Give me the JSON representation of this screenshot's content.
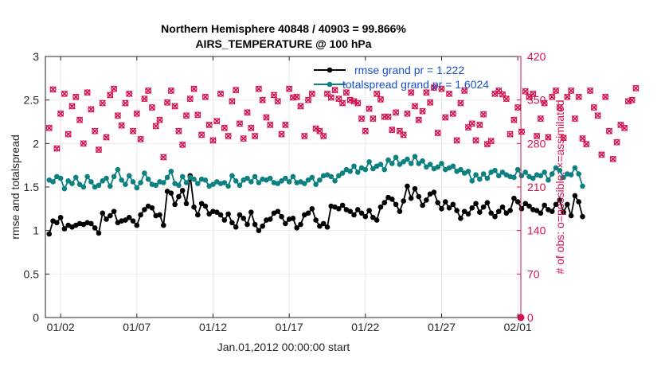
{
  "chart_data": {
    "type": "line",
    "title_line1": "Northern Hemisphere 40848 / 40903 = 99.866%",
    "title_line2": "AIRS_TEMPERATURE @ 100 hPa",
    "xlabel": "Jan.01,2012 00:00:00 start",
    "ylabel_left": "rmse and totalspread",
    "ylabel_right": "# of obs: o=possible; ×=assimilated",
    "xlim": [
      0,
      31.2
    ],
    "ylim_left": [
      0,
      3
    ],
    "ylim_right": [
      0,
      420
    ],
    "x_ticks": [
      {
        "x": 1,
        "label": "01/02"
      },
      {
        "x": 6,
        "label": "01/07"
      },
      {
        "x": 11,
        "label": "01/12"
      },
      {
        "x": 16,
        "label": "01/17"
      },
      {
        "x": 21,
        "label": "01/22"
      },
      {
        "x": 26,
        "label": "01/27"
      },
      {
        "x": 31,
        "label": "02/01"
      }
    ],
    "y_ticks_left": [
      "0",
      "0.5",
      "1",
      "1.5",
      "2",
      "2.5",
      "3"
    ],
    "y_ticks_right": [
      "0",
      "70",
      "140",
      "210",
      "280",
      "350",
      "420"
    ],
    "legend": [
      {
        "label": "rmse grand pr = 1.222",
        "color": "#000000"
      },
      {
        "label": "totalspread grand pr = 1.6024",
        "color": "#0d8080"
      }
    ],
    "series": [
      {
        "name": "rmse",
        "color": "#000000",
        "start": 0.25,
        "step": 0.25,
        "values": [
          0.96,
          1.11,
          1.09,
          1.15,
          1.02,
          1.06,
          1.04,
          1.06,
          1.08,
          1.07,
          1.09,
          1.08,
          1.03,
          0.97,
          1.2,
          1.13,
          1.17,
          1.22,
          1.09,
          1.11,
          1.12,
          1.15,
          1.11,
          1.06,
          1.18,
          1.24,
          1.28,
          1.26,
          1.17,
          1.18,
          1.06,
          1.45,
          1.43,
          1.3,
          1.39,
          1.46,
          1.31,
          1.63,
          1.27,
          1.18,
          1.31,
          1.28,
          1.19,
          1.22,
          1.21,
          1.18,
          1.12,
          1.19,
          1.09,
          1.04,
          1.18,
          1.14,
          1.07,
          1.21,
          1.07,
          1.0,
          1.05,
          1.12,
          1.13,
          1.2,
          1.22,
          1.16,
          1.08,
          1.13,
          1.14,
          1.03,
          1.07,
          1.18,
          1.2,
          1.25,
          1.12,
          1.05,
          1.08,
          1.04,
          1.28,
          1.27,
          1.25,
          1.29,
          1.24,
          1.22,
          1.18,
          1.24,
          1.2,
          1.16,
          1.23,
          1.15,
          1.12,
          1.27,
          1.32,
          1.38,
          1.36,
          1.3,
          1.22,
          1.34,
          1.51,
          1.37,
          1.48,
          1.39,
          1.29,
          1.35,
          1.42,
          1.44,
          1.32,
          1.25,
          1.33,
          1.26,
          1.3,
          1.23,
          1.14,
          1.22,
          1.19,
          1.26,
          1.31,
          1.21,
          1.27,
          1.32,
          1.2,
          1.16,
          1.22,
          1.27,
          1.2,
          1.23,
          1.37,
          1.33,
          1.25,
          1.31,
          1.28,
          1.24,
          1.23,
          1.2,
          1.29,
          1.24,
          1.22,
          1.3,
          1.35,
          1.21,
          1.3,
          1.17,
          1.4,
          1.33,
          1.16
        ]
      },
      {
        "name": "totalspread",
        "color": "#0d8080",
        "start": 0.25,
        "step": 0.25,
        "values": [
          1.58,
          1.56,
          1.62,
          1.6,
          1.48,
          1.57,
          1.54,
          1.61,
          1.53,
          1.5,
          1.62,
          1.56,
          1.5,
          1.52,
          1.57,
          1.6,
          1.51,
          1.62,
          1.7,
          1.58,
          1.53,
          1.63,
          1.56,
          1.49,
          1.55,
          1.66,
          1.59,
          1.53,
          1.52,
          1.56,
          1.55,
          1.61,
          1.68,
          1.54,
          1.52,
          1.62,
          1.55,
          1.61,
          1.59,
          1.54,
          1.59,
          1.58,
          1.51,
          1.53,
          1.56,
          1.54,
          1.55,
          1.51,
          1.63,
          1.57,
          1.52,
          1.58,
          1.6,
          1.56,
          1.62,
          1.55,
          1.59,
          1.58,
          1.6,
          1.55,
          1.54,
          1.57,
          1.6,
          1.56,
          1.62,
          1.55,
          1.56,
          1.54,
          1.58,
          1.61,
          1.53,
          1.58,
          1.63,
          1.64,
          1.62,
          1.57,
          1.63,
          1.66,
          1.7,
          1.68,
          1.74,
          1.67,
          1.72,
          1.7,
          1.79,
          1.71,
          1.74,
          1.76,
          1.7,
          1.81,
          1.77,
          1.84,
          1.76,
          1.79,
          1.82,
          1.77,
          1.85,
          1.77,
          1.8,
          1.73,
          1.76,
          1.71,
          1.73,
          1.77,
          1.7,
          1.72,
          1.74,
          1.68,
          1.7,
          1.66,
          1.68,
          1.57,
          1.64,
          1.59,
          1.65,
          1.6,
          1.67,
          1.69,
          1.63,
          1.67,
          1.64,
          1.62,
          1.61,
          1.7,
          1.63,
          1.67,
          1.62,
          1.6,
          1.64,
          1.63,
          1.67,
          1.58,
          1.65,
          1.72,
          1.69,
          1.61,
          1.65,
          1.64,
          1.72,
          1.65,
          1.51
        ]
      }
    ],
    "obs_scatter": {
      "name": "# of obs (possible / assimilated)",
      "color": "#d6104c",
      "start": 0.25,
      "step": 0.25,
      "values": [
        305,
        367,
        272,
        328,
        360,
        295,
        340,
        355,
        318,
        280,
        362,
        335,
        300,
        270,
        345,
        290,
        358,
        368,
        325,
        309,
        345,
        360,
        300,
        328,
        287,
        352,
        365,
        338,
        308,
        318,
        258,
        346,
        365,
        340,
        300,
        278,
        325,
        352,
        368,
        326,
        294,
        355,
        310,
        285,
        316,
        360,
        305,
        292,
        348,
        366,
        312,
        288,
        330,
        305,
        292,
        368,
        350,
        322,
        310,
        358,
        348,
        295,
        310,
        368,
        354,
        355,
        340,
        292,
        350,
        360,
        304,
        300,
        292,
        360,
        354,
        366,
        352,
        345,
        362,
        350,
        348,
        345,
        320,
        300,
        336,
        320,
        360,
        351,
        323,
        323,
        302,
        330,
        300,
        294,
        328,
        362,
        340,
        318,
        332,
        362,
        346,
        370,
        297,
        368,
        322,
        360,
        328,
        285,
        345,
        365,
        306,
        312,
        285,
        310,
        327,
        279,
        284,
        360,
        365,
        359,
        352,
        295,
        318,
        338,
        299,
        364,
        355,
        360,
        292,
        320,
        345,
        290,
        355,
        365,
        338,
        289,
        355,
        365,
        320,
        355,
        288,
        279,
        365,
        338,
        325,
        262,
        355,
        300,
        255,
        282,
        310,
        305,
        348,
        350,
        369
      ]
    }
  }
}
